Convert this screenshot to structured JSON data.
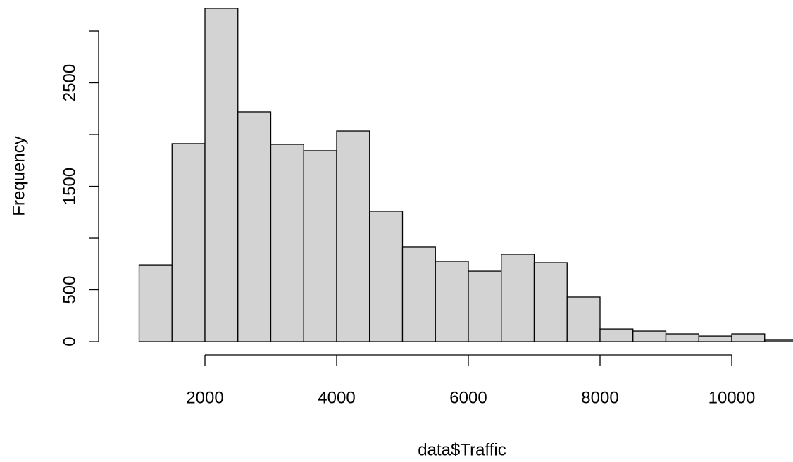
{
  "chart_data": {
    "type": "histogram",
    "xlabel": "data$Traffic",
    "ylabel": "Frequency",
    "bins": [
      1000,
      1500,
      2000,
      2500,
      3000,
      3500,
      4000,
      4500,
      5000,
      5500,
      6000,
      6500,
      7000,
      7500,
      8000,
      8500,
      9000,
      9500,
      10000,
      10500,
      11000
    ],
    "values": [
      741,
      1912,
      3218,
      2218,
      1905,
      1844,
      2034,
      1259,
      912,
      776,
      680,
      844,
      762,
      429,
      122,
      102,
      75,
      54,
      75,
      14
    ],
    "color": "#d3d3d3",
    "edgecolor": "#000000",
    "xlim": [
      385,
      11615
    ],
    "ylim": [
      -129,
      3347
    ],
    "xticks": [
      2000,
      4000,
      6000,
      8000,
      10000
    ],
    "yticks": [
      0,
      500,
      {
        "value": 1000,
        "label": null
      },
      1500,
      {
        "value": 2000,
        "label": null
      },
      2500,
      {
        "value": 3000,
        "label": null
      }
    ],
    "grid": false
  }
}
